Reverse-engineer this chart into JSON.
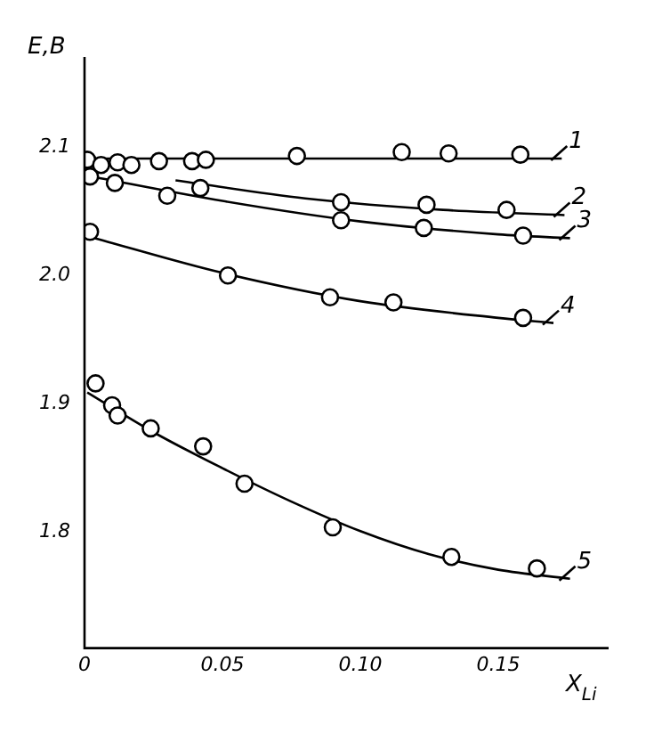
{
  "chart_data": {
    "type": "scatter",
    "xlabel": "X$_{Li}$",
    "ylabel": "E,B",
    "xlim": [
      0,
      0.19
    ],
    "ylim": [
      1.71,
      2.17
    ],
    "xticks": [
      0,
      {
        "value": 0.05,
        "label": "0.05"
      },
      {
        "value": 0.1,
        "label": "0.10"
      },
      {
        "value": 0.15,
        "label": "0.15"
      }
    ],
    "yticks": [
      {
        "value": 1.8,
        "label": "1.8"
      },
      {
        "value": 1.9,
        "label": "1.9"
      },
      {
        "value": 2,
        "label": "2.0"
      },
      {
        "value": 2.1,
        "label": "2.1"
      }
    ],
    "grid": false,
    "legend": "right",
    "series": [
      {
        "type": "scatter",
        "marker": "circle",
        "color": "#000000",
        "x": [
          0.001,
          0.006,
          0.012,
          0.017,
          0.027,
          0.039,
          0.044,
          0.077,
          0.115,
          0.132,
          0.158
        ],
        "values": [
          2.09,
          2.086,
          2.088,
          2.086,
          2.089,
          2.089,
          2.09,
          2.093,
          2.096,
          2.095,
          2.094
        ]
      },
      {
        "type": "scatter",
        "marker": "circle",
        "color": "#000000",
        "x": [
          0.042,
          0.093,
          0.124,
          0.153
        ],
        "values": [
          2.068,
          2.057,
          2.055,
          2.051
        ]
      },
      {
        "type": "scatter",
        "marker": "circle",
        "color": "#000000",
        "x": [
          0.002,
          0.011,
          0.03,
          0.093,
          0.123,
          0.159
        ],
        "values": [
          2.077,
          2.072,
          2.062,
          2.043,
          2.037,
          2.031
        ]
      },
      {
        "type": "scatter",
        "marker": "circle",
        "color": "#000000",
        "x": [
          0.002,
          0.052,
          0.089,
          0.112,
          0.159
        ],
        "values": [
          2.034,
          2.0,
          1.983,
          1.979,
          1.967
        ]
      },
      {
        "type": "scatter",
        "marker": "circle",
        "color": "#000000",
        "x": [
          0.004,
          0.01,
          0.012,
          0.024,
          0.043,
          0.058,
          0.09,
          0.133,
          0.164
        ],
        "values": [
          1.916,
          1.899,
          1.891,
          1.881,
          1.867,
          1.838,
          1.804,
          1.781,
          1.772
        ]
      },
      {
        "type": "line",
        "name": "1",
        "marker": "none",
        "line_style": "solid",
        "color": "#000000",
        "x": [
          0.0,
          0.173
        ],
        "values": [
          2.091,
          2.091
        ]
      },
      {
        "type": "line",
        "name": "2",
        "marker": "none",
        "line_style": "solid",
        "color": "#000000",
        "x": [
          0.033,
          0.08,
          0.13,
          0.174
        ],
        "values": [
          2.074,
          2.06,
          2.051,
          2.047
        ]
      },
      {
        "type": "line",
        "name": "3",
        "marker": "none",
        "line_style": "solid",
        "color": "#000000",
        "x": [
          0.0,
          0.05,
          0.1,
          0.15,
          0.176
        ],
        "values": [
          2.078,
          2.058,
          2.042,
          2.032,
          2.029
        ]
      },
      {
        "type": "line",
        "name": "4",
        "marker": "none",
        "line_style": "solid",
        "color": "#000000",
        "x": [
          0.002,
          0.05,
          0.1,
          0.15,
          0.17
        ],
        "values": [
          2.03,
          2.002,
          1.98,
          1.967,
          1.963
        ]
      },
      {
        "type": "line",
        "name": "5",
        "marker": "none",
        "line_style": "solid",
        "color": "#000000",
        "x": [
          0.001,
          0.025,
          0.05,
          0.075,
          0.1,
          0.125,
          0.15,
          0.176
        ],
        "values": [
          1.909,
          1.878,
          1.85,
          1.824,
          1.801,
          1.783,
          1.771,
          1.764
        ]
      }
    ]
  }
}
